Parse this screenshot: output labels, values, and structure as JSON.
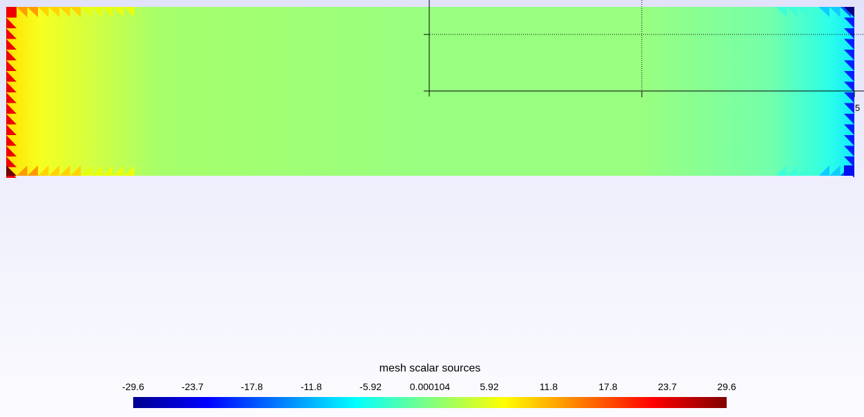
{
  "viewer": {
    "axis_tick_label": "5"
  },
  "colorbar": {
    "title": "mesh scalar sources",
    "ticks": [
      "-29.6",
      "-23.7",
      "-17.8",
      "-11.8",
      "-5.92",
      "0.000104",
      "5.92",
      "11.8",
      "17.8",
      "23.7",
      "29.6"
    ],
    "range": [
      -29.6,
      29.6
    ],
    "colormap": [
      "#00008f",
      "#0000ff",
      "#00ffff",
      "#ffff00",
      "#ff0000",
      "#800000"
    ]
  },
  "mesh": {
    "field": "mesh scalar sources",
    "left_edge_value": 29.6,
    "right_edge_value": -29.6,
    "interior_value": 0
  }
}
